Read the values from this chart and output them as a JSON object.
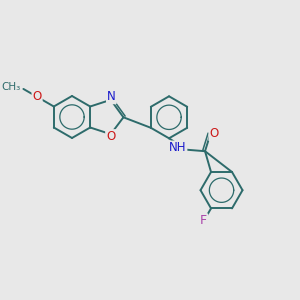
{
  "background_color": "#e8e8e8",
  "bond_color": "#2d6b6b",
  "bond_width": 1.4,
  "atom_colors": {
    "N": "#1a1acc",
    "O": "#cc1a1a",
    "F": "#aa44aa",
    "C": "#2d6b6b"
  },
  "fig_size": [
    3.0,
    3.0
  ],
  "dpi": 100
}
